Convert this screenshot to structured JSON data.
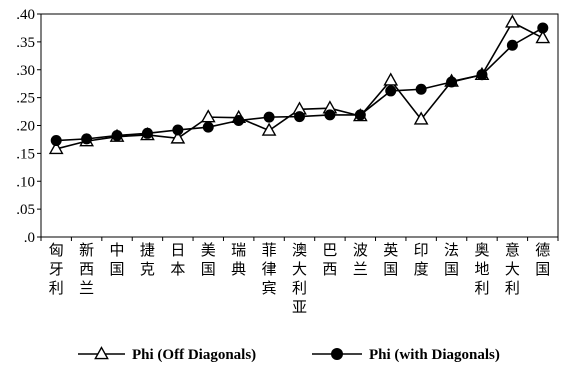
{
  "chart_data": {
    "type": "line",
    "title": "",
    "xlabel": "",
    "ylabel": "",
    "ylim": [
      0,
      0.4
    ],
    "yticks": [
      ".0",
      ".05",
      ".10",
      ".15",
      ".20",
      ".25",
      ".30",
      ".35",
      ".40"
    ],
    "grid": false,
    "legend_position": "bottom",
    "categories": [
      "匈牙利",
      "新西兰",
      "中国",
      "捷克",
      "日本",
      "美国",
      "瑞典",
      "菲律宾",
      "澳大利亚",
      "巴西",
      "波兰",
      "英国",
      "印度",
      "法国",
      "奥地利",
      "意大利",
      "德国"
    ],
    "series": [
      {
        "name": "Phi (Off Diagonals)",
        "marker": "triangle-open",
        "color": "#000000",
        "values": [
          0.158,
          0.172,
          0.18,
          0.183,
          0.177,
          0.215,
          0.214,
          0.191,
          0.229,
          0.231,
          0.217,
          0.281,
          0.211,
          0.279,
          0.291,
          0.385,
          0.357
        ]
      },
      {
        "name": "Phi (with Diagonals)",
        "marker": "circle-filled",
        "color": "#000000",
        "values": [
          0.173,
          0.176,
          0.182,
          0.186,
          0.192,
          0.197,
          0.209,
          0.215,
          0.216,
          0.219,
          0.219,
          0.262,
          0.265,
          0.278,
          0.291,
          0.344,
          0.375
        ]
      }
    ]
  }
}
